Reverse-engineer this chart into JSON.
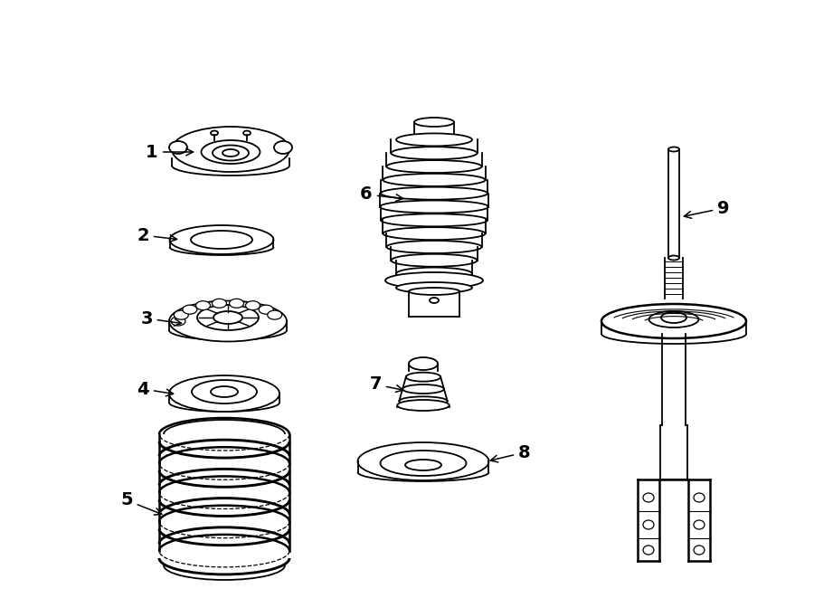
{
  "bg": "#ffffff",
  "lc": "#000000",
  "lw": 1.3,
  "fig_w": 9.0,
  "fig_h": 6.61,
  "dpi": 100
}
